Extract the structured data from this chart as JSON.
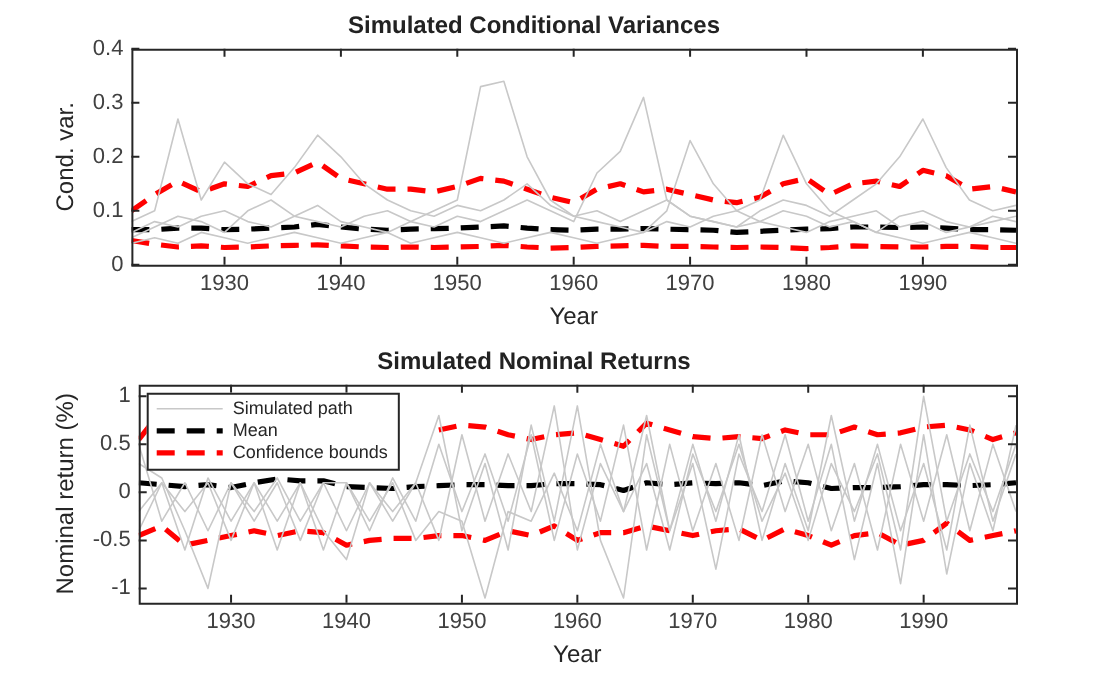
{
  "chart_data": [
    {
      "type": "line",
      "title": "Simulated Conditional Variances",
      "xlabel": "Year",
      "ylabel": "Cond. var.",
      "x": [
        1922,
        1924,
        1926,
        1928,
        1930,
        1932,
        1934,
        1936,
        1938,
        1940,
        1942,
        1944,
        1946,
        1948,
        1950,
        1952,
        1954,
        1956,
        1958,
        1960,
        1962,
        1964,
        1966,
        1968,
        1970,
        1972,
        1974,
        1976,
        1978,
        1980,
        1982,
        1984,
        1986,
        1988,
        1990,
        1992,
        1994,
        1996,
        1998
      ],
      "xlim": [
        1922,
        1998
      ],
      "xticks": [
        1930,
        1940,
        1950,
        1960,
        1970,
        1980,
        1990
      ],
      "ylim": [
        0,
        0.4
      ],
      "yticks": [
        0,
        0.1,
        0.2,
        0.3,
        0.4
      ],
      "grid": false,
      "marker": "none",
      "series": [
        {
          "color": "#c8c8c8",
          "line_style": "solid",
          "values": [
            0.06,
            0.08,
            0.07,
            0.09,
            0.1,
            0.08,
            0.07,
            0.09,
            0.11,
            0.08,
            0.07,
            0.06,
            0.08,
            0.1,
            0.12,
            0.33,
            0.34,
            0.2,
            0.12,
            0.09,
            0.08,
            0.07,
            0.06,
            0.08,
            0.07,
            0.09,
            0.1,
            0.08,
            0.07,
            0.06,
            0.08,
            0.09,
            0.1,
            0.07,
            0.08,
            0.06,
            0.07,
            0.09,
            0.08
          ]
        },
        {
          "color": "#c8c8c8",
          "line_style": "solid",
          "values": [
            0.05,
            0.07,
            0.09,
            0.08,
            0.06,
            0.1,
            0.12,
            0.09,
            0.08,
            0.07,
            0.09,
            0.1,
            0.08,
            0.07,
            0.09,
            0.08,
            0.1,
            0.12,
            0.1,
            0.08,
            0.17,
            0.21,
            0.31,
            0.12,
            0.09,
            0.08,
            0.07,
            0.08,
            0.1,
            0.09,
            0.07,
            0.08,
            0.06,
            0.09,
            0.1,
            0.08,
            0.07,
            0.08,
            0.09
          ]
        },
        {
          "color": "#c8c8c8",
          "line_style": "solid",
          "values": [
            0.08,
            0.1,
            0.27,
            0.12,
            0.19,
            0.15,
            0.13,
            0.18,
            0.24,
            0.2,
            0.15,
            0.12,
            0.1,
            0.09,
            0.11,
            0.1,
            0.12,
            0.15,
            0.11,
            0.09,
            0.1,
            0.08,
            0.1,
            0.12,
            0.09,
            0.08,
            0.07,
            0.1,
            0.12,
            0.11,
            0.09,
            0.12,
            0.15,
            0.2,
            0.27,
            0.18,
            0.12,
            0.1,
            0.11
          ]
        },
        {
          "color": "#c8c8c8",
          "line_style": "solid",
          "values": [
            0.04,
            0.05,
            0.04,
            0.06,
            0.05,
            0.04,
            0.05,
            0.06,
            0.05,
            0.04,
            0.05,
            0.06,
            0.04,
            0.05,
            0.06,
            0.05,
            0.04,
            0.05,
            0.06,
            0.05,
            0.04,
            0.05,
            0.06,
            0.1,
            0.23,
            0.15,
            0.1,
            0.12,
            0.24,
            0.15,
            0.1,
            0.08,
            0.06,
            0.05,
            0.04,
            0.05,
            0.06,
            0.05,
            0.04
          ]
        },
        {
          "color": "#000000",
          "line_style": "dashed",
          "values": [
            0.065,
            0.065,
            0.068,
            0.068,
            0.065,
            0.066,
            0.068,
            0.07,
            0.075,
            0.07,
            0.066,
            0.064,
            0.066,
            0.067,
            0.068,
            0.07,
            0.072,
            0.068,
            0.065,
            0.064,
            0.066,
            0.066,
            0.067,
            0.066,
            0.065,
            0.064,
            0.06,
            0.062,
            0.064,
            0.066,
            0.067,
            0.07,
            0.07,
            0.069,
            0.07,
            0.068,
            0.065,
            0.065,
            0.064
          ]
        },
        {
          "color": "#ff0000",
          "line_style": "dashed",
          "values": [
            0.1,
            0.13,
            0.155,
            0.135,
            0.15,
            0.145,
            0.165,
            0.17,
            0.19,
            0.16,
            0.15,
            0.14,
            0.14,
            0.135,
            0.145,
            0.16,
            0.155,
            0.14,
            0.125,
            0.115,
            0.14,
            0.15,
            0.135,
            0.14,
            0.13,
            0.12,
            0.115,
            0.125,
            0.15,
            0.16,
            0.13,
            0.15,
            0.155,
            0.145,
            0.175,
            0.165,
            0.14,
            0.145,
            0.135
          ]
        },
        {
          "color": "#ff0000",
          "line_style": "dashed",
          "values": [
            0.045,
            0.038,
            0.033,
            0.035,
            0.032,
            0.033,
            0.035,
            0.036,
            0.037,
            0.035,
            0.033,
            0.032,
            0.033,
            0.032,
            0.033,
            0.034,
            0.036,
            0.033,
            0.031,
            0.032,
            0.034,
            0.035,
            0.036,
            0.034,
            0.034,
            0.033,
            0.032,
            0.033,
            0.032,
            0.03,
            0.032,
            0.035,
            0.034,
            0.033,
            0.033,
            0.034,
            0.034,
            0.032,
            0.032
          ]
        }
      ]
    },
    {
      "type": "line",
      "title": "Simulated Nominal Returns",
      "xlabel": "Year",
      "ylabel": "Nominal return (%)",
      "x": [
        1922,
        1924,
        1926,
        1928,
        1930,
        1932,
        1934,
        1936,
        1938,
        1940,
        1942,
        1944,
        1946,
        1948,
        1950,
        1952,
        1954,
        1956,
        1958,
        1960,
        1962,
        1964,
        1966,
        1968,
        1970,
        1972,
        1974,
        1976,
        1978,
        1980,
        1982,
        1984,
        1986,
        1988,
        1990,
        1992,
        1994,
        1996,
        1998
      ],
      "xlim": [
        1922,
        1998
      ],
      "xticks": [
        1930,
        1940,
        1950,
        1960,
        1970,
        1980,
        1990
      ],
      "ylim": [
        -1.15,
        1.12
      ],
      "yticks": [
        -1,
        -0.5,
        0,
        0.5,
        1
      ],
      "grid": false,
      "marker": "none",
      "legend": "top left",
      "series": [
        {
          "name": "Simulated path",
          "color": "#c8c8c8",
          "line_style": "solid",
          "values": [
            0.3,
            0.15,
            -0.4,
            -1.0,
            0.1,
            -0.3,
            0.1,
            -0.5,
            0.1,
            0.1,
            -0.3,
            0.1,
            -0.5,
            -0.2,
            -0.3,
            -1.1,
            -0.2,
            -0.3,
            0.2,
            -0.4,
            0.5,
            -0.2,
            0.3,
            -0.6,
            0.4,
            -0.2,
            0.5,
            -0.3,
            0.2,
            -0.5,
            0.3,
            -0.2,
            0.4,
            -0.6,
            1.0,
            -0.3,
            0.4,
            -0.2,
            0.5
          ]
        },
        {
          "color": "#c8c8c8",
          "line_style": "solid",
          "values": [
            -0.2,
            0.1,
            -0.6,
            0.15,
            -0.3,
            0.1,
            -0.6,
            0.1,
            -0.4,
            -0.7,
            0.1,
            -0.3,
            0.1,
            0.8,
            -0.4,
            0.3,
            -0.6,
            0.7,
            -0.3,
            0.9,
            -0.5,
            -1.1,
            0.6,
            -0.4,
            0.3,
            -0.8,
            0.4,
            -0.2,
            0.6,
            -0.3,
            0.5,
            -0.7,
            0.3,
            -0.95,
            0.6,
            -0.85,
            0.3,
            -0.4,
            0.7
          ]
        },
        {
          "color": "#c8c8c8",
          "line_style": "solid",
          "values": [
            0.5,
            -0.3,
            0.1,
            -0.4,
            0.1,
            -0.2,
            0.15,
            -0.3,
            0.1,
            -0.4,
            0.1,
            -0.2,
            0.1,
            -0.5,
            0.6,
            -0.3,
            0.4,
            -0.2,
            0.9,
            -0.6,
            0.3,
            -0.2,
            0.8,
            -0.4,
            0.5,
            -0.3,
            0.6,
            -0.5,
            0.3,
            -0.4,
            0.8,
            -0.3,
            0.5,
            -0.4,
            0.3,
            -0.6,
            0.7,
            -0.3,
            0.4
          ]
        },
        {
          "color": "#c8c8c8",
          "line_style": "solid",
          "values": [
            -0.4,
            0.1,
            -0.2,
            0.1,
            -0.5,
            0.1,
            -0.3,
            0.1,
            -0.6,
            0.1,
            -0.4,
            0.15,
            -0.3,
            0.5,
            -0.2,
            0.4,
            -0.3,
            0.6,
            -0.5,
            0.4,
            -0.3,
            0.7,
            -0.6,
            0.5,
            -0.4,
            0.3,
            -0.5,
            0.6,
            -0.2,
            0.5,
            -0.4,
            0.3,
            -0.6,
            0.5,
            -0.3,
            0.6,
            -0.4,
            0.5,
            -0.2
          ]
        },
        {
          "name": "Mean",
          "color": "#000000",
          "line_style": "dashed",
          "values": [
            0.1,
            0.08,
            0.06,
            0.08,
            0.05,
            0.1,
            0.14,
            0.12,
            0.12,
            0.06,
            0.05,
            0.04,
            0.06,
            0.07,
            0.08,
            0.08,
            0.07,
            0.07,
            0.09,
            0.09,
            0.08,
            0.02,
            0.1,
            0.08,
            0.1,
            0.09,
            0.1,
            0.07,
            0.12,
            0.1,
            0.04,
            0.05,
            0.05,
            0.06,
            0.08,
            0.08,
            0.07,
            0.08,
            0.1
          ]
        },
        {
          "name": "Confidence bounds",
          "color": "#ff0000",
          "line_style": "dashed",
          "x": [
            1922,
            1923,
            1935,
            1948,
            1950,
            1952,
            1954,
            1956,
            1958,
            1960,
            1962,
            1964,
            1966,
            1968,
            1970,
            1972,
            1974,
            1976,
            1978,
            1980,
            1982,
            1984,
            1986,
            1988,
            1990,
            1992,
            1994,
            1996,
            1998
          ],
          "values": [
            0.55,
            0.7,
            null,
            0.65,
            0.7,
            0.68,
            0.6,
            0.55,
            0.6,
            0.62,
            0.55,
            0.48,
            0.72,
            0.65,
            0.58,
            0.56,
            0.58,
            0.56,
            0.65,
            0.6,
            0.6,
            0.68,
            0.6,
            0.62,
            0.68,
            0.7,
            0.65,
            0.55,
            0.62
          ]
        },
        {
          "color": "#ff0000",
          "line_style": "dashed",
          "values": [
            -0.45,
            -0.35,
            -0.55,
            -0.5,
            -0.45,
            -0.4,
            -0.45,
            -0.4,
            -0.42,
            -0.55,
            -0.5,
            -0.48,
            -0.48,
            -0.45,
            -0.45,
            -0.5,
            -0.4,
            -0.45,
            -0.35,
            -0.5,
            -0.42,
            -0.42,
            -0.35,
            -0.4,
            -0.45,
            -0.4,
            -0.38,
            -0.5,
            -0.38,
            -0.45,
            -0.55,
            -0.45,
            -0.42,
            -0.55,
            -0.5,
            -0.32,
            -0.5,
            -0.45,
            -0.4
          ]
        }
      ]
    }
  ]
}
